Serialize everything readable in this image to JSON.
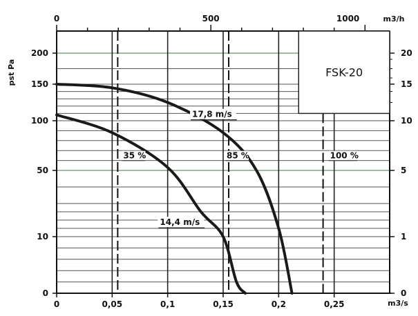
{
  "chart_data": {
    "type": "line",
    "model_label": "FSK-20",
    "ylabel": "pst Pa",
    "x_bottom": {
      "unit_label": "m3/s",
      "range": [
        0,
        0.3
      ],
      "ticks": [
        {
          "value": 0,
          "label": "0"
        },
        {
          "value": 0.05,
          "label": "0,05"
        },
        {
          "value": 0.1,
          "label": "0,1"
        },
        {
          "value": 0.15,
          "label": "0,15"
        },
        {
          "value": 0.2,
          "label": "0,2"
        },
        {
          "value": 0.25,
          "label": "0,25"
        }
      ]
    },
    "x_top": {
      "unit_label": "m3/h",
      "ticks": [
        {
          "value": 0,
          "label": "0"
        },
        {
          "value": 500,
          "label": "500"
        },
        {
          "value": 1000,
          "label": "1000"
        }
      ]
    },
    "y_left": {
      "ticks": [
        {
          "value": 0,
          "label": "0"
        },
        {
          "value": 10,
          "label": "10"
        },
        {
          "value": 50,
          "label": "50"
        },
        {
          "value": 100,
          "label": "100"
        },
        {
          "value": 150,
          "label": "150"
        },
        {
          "value": 200,
          "label": "200"
        }
      ]
    },
    "y_right": {
      "ticks": [
        {
          "value": 0,
          "label": "0"
        },
        {
          "value": 1,
          "label": "1"
        },
        {
          "value": 5,
          "label": "5"
        },
        {
          "value": 10,
          "label": "10"
        },
        {
          "value": 15,
          "label": "15"
        },
        {
          "value": 20,
          "label": "20"
        }
      ]
    },
    "efficiency_lines": [
      {
        "x": 0.055,
        "label": "35 %"
      },
      {
        "x": 0.155,
        "label": "85 %"
      },
      {
        "x": 0.24,
        "label": "100 %"
      }
    ],
    "series": [
      {
        "name": "17,8 m/s",
        "points": [
          [
            0,
            150
          ],
          [
            0.05,
            145
          ],
          [
            0.1,
            125
          ],
          [
            0.15,
            88
          ],
          [
            0.18,
            50
          ],
          [
            0.2,
            15
          ],
          [
            0.212,
            0
          ]
        ]
      },
      {
        "name": "14,4 m/s",
        "points": [
          [
            0,
            108
          ],
          [
            0.05,
            88
          ],
          [
            0.1,
            53
          ],
          [
            0.13,
            25
          ],
          [
            0.15,
            10
          ],
          [
            0.162,
            2
          ],
          [
            0.17,
            0
          ]
        ]
      }
    ]
  }
}
